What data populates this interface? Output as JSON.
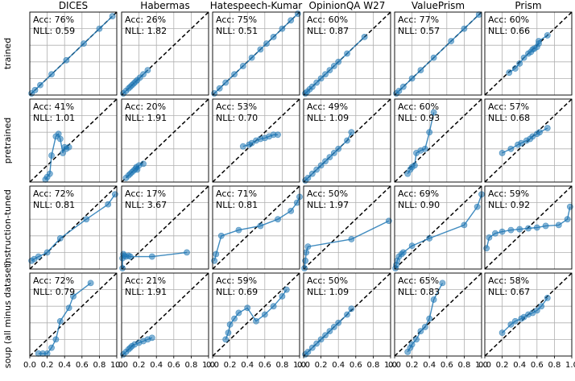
{
  "chart_data": {
    "type": "line",
    "layout": "grid-4x6",
    "xlim": [
      0,
      1
    ],
    "ylim": [
      0,
      1
    ],
    "grid": true,
    "x_ticks": [
      "0.0",
      "0.2",
      "0.4",
      "0.6",
      "0.8",
      "1.0"
    ],
    "columns": [
      "DICES",
      "Habermas",
      "Hatespeech-Kumar",
      "OpinionQA W27",
      "ValuePrism",
      "Prism"
    ],
    "rows": [
      "trained",
      "pretrained",
      "instruction-tuned",
      "soup (all minus dataset)"
    ],
    "acc_label": "Acc:",
    "nll_label": "NLL:",
    "colors": {
      "series": "#1f77b4",
      "diagonal": "#000000",
      "grid": "#b0b0b0"
    },
    "panels": [
      [
        {
          "acc": "76%",
          "nll": "0.59",
          "points": [
            [
              0.02,
              0.02
            ],
            [
              0.06,
              0.06
            ],
            [
              0.12,
              0.12
            ],
            [
              0.25,
              0.25
            ],
            [
              0.42,
              0.42
            ],
            [
              0.62,
              0.62
            ],
            [
              0.8,
              0.8
            ],
            [
              0.95,
              0.95
            ]
          ]
        },
        {
          "acc": "26%",
          "nll": "1.82",
          "points": [
            [
              0.02,
              0.02
            ],
            [
              0.05,
              0.05
            ],
            [
              0.08,
              0.08
            ],
            [
              0.1,
              0.1
            ],
            [
              0.12,
              0.12
            ],
            [
              0.14,
              0.14
            ],
            [
              0.16,
              0.16
            ],
            [
              0.18,
              0.18
            ],
            [
              0.21,
              0.21
            ],
            [
              0.25,
              0.25
            ],
            [
              0.3,
              0.3
            ]
          ]
        },
        {
          "acc": "75%",
          "nll": "0.51",
          "points": [
            [
              0.02,
              0.02
            ],
            [
              0.08,
              0.08
            ],
            [
              0.15,
              0.15
            ],
            [
              0.25,
              0.25
            ],
            [
              0.35,
              0.35
            ],
            [
              0.45,
              0.45
            ],
            [
              0.55,
              0.55
            ],
            [
              0.62,
              0.62
            ],
            [
              0.7,
              0.7
            ],
            [
              0.8,
              0.8
            ],
            [
              0.9,
              0.9
            ],
            [
              0.98,
              0.98
            ]
          ]
        },
        {
          "acc": "60%",
          "nll": "0.87",
          "points": [
            [
              0.02,
              0.02
            ],
            [
              0.04,
              0.04
            ],
            [
              0.07,
              0.07
            ],
            [
              0.1,
              0.1
            ],
            [
              0.15,
              0.15
            ],
            [
              0.2,
              0.2
            ],
            [
              0.25,
              0.25
            ],
            [
              0.3,
              0.3
            ],
            [
              0.35,
              0.35
            ],
            [
              0.4,
              0.4
            ],
            [
              0.5,
              0.5
            ],
            [
              0.7,
              0.7
            ]
          ]
        },
        {
          "acc": "77%",
          "nll": "0.57",
          "points": [
            [
              0.02,
              0.02
            ],
            [
              0.05,
              0.05
            ],
            [
              0.1,
              0.1
            ],
            [
              0.2,
              0.2
            ],
            [
              0.3,
              0.3
            ],
            [
              0.45,
              0.45
            ],
            [
              0.65,
              0.65
            ],
            [
              0.8,
              0.8
            ],
            [
              0.97,
              0.97
            ]
          ]
        },
        {
          "acc": "60%",
          "nll": "0.66",
          "points": [
            [
              0.28,
              0.27
            ],
            [
              0.35,
              0.32
            ],
            [
              0.4,
              0.38
            ],
            [
              0.45,
              0.45
            ],
            [
              0.5,
              0.5
            ],
            [
              0.53,
              0.52
            ],
            [
              0.55,
              0.55
            ],
            [
              0.57,
              0.56
            ],
            [
              0.6,
              0.58
            ],
            [
              0.62,
              0.62
            ],
            [
              0.62,
              0.65
            ],
            [
              0.72,
              0.72
            ]
          ]
        }
      ],
      [
        {
          "acc": "41%",
          "nll": "1.01",
          "points": [
            [
              0.18,
              0.03
            ],
            [
              0.2,
              0.06
            ],
            [
              0.23,
              0.1
            ],
            [
              0.25,
              0.32
            ],
            [
              0.3,
              0.55
            ],
            [
              0.33,
              0.58
            ],
            [
              0.35,
              0.52
            ],
            [
              0.38,
              0.35
            ],
            [
              0.4,
              0.42
            ],
            [
              0.42,
              0.4
            ],
            [
              0.45,
              0.42
            ]
          ]
        },
        {
          "acc": "20%",
          "nll": "1.91",
          "points": [
            [
              0.05,
              0.05
            ],
            [
              0.08,
              0.08
            ],
            [
              0.1,
              0.1
            ],
            [
              0.12,
              0.12
            ],
            [
              0.14,
              0.14
            ],
            [
              0.16,
              0.16
            ],
            [
              0.17,
              0.18
            ],
            [
              0.18,
              0.15
            ],
            [
              0.2,
              0.2
            ],
            [
              0.25,
              0.22
            ]
          ]
        },
        {
          "acc": "53%",
          "nll": "0.70",
          "points": [
            [
              0.35,
              0.43
            ],
            [
              0.42,
              0.45
            ],
            [
              0.45,
              0.47
            ],
            [
              0.5,
              0.5
            ],
            [
              0.55,
              0.52
            ],
            [
              0.6,
              0.53
            ],
            [
              0.65,
              0.55
            ],
            [
              0.7,
              0.57
            ],
            [
              0.75,
              0.57
            ]
          ]
        },
        {
          "acc": "49%",
          "nll": "1.09",
          "points": [
            [
              0.02,
              0.02
            ],
            [
              0.05,
              0.05
            ],
            [
              0.1,
              0.1
            ],
            [
              0.15,
              0.15
            ],
            [
              0.2,
              0.2
            ],
            [
              0.25,
              0.25
            ],
            [
              0.3,
              0.3
            ],
            [
              0.35,
              0.35
            ],
            [
              0.4,
              0.4
            ],
            [
              0.5,
              0.5
            ],
            [
              0.55,
              0.6
            ]
          ]
        },
        {
          "acc": "60%",
          "nll": "0.93",
          "points": [
            [
              0.15,
              0.1
            ],
            [
              0.18,
              0.15
            ],
            [
              0.2,
              0.18
            ],
            [
              0.23,
              0.2
            ],
            [
              0.25,
              0.35
            ],
            [
              0.3,
              0.38
            ],
            [
              0.35,
              0.4
            ],
            [
              0.4,
              0.6
            ],
            [
              0.45,
              0.84
            ]
          ]
        },
        {
          "acc": "57%",
          "nll": "0.68",
          "points": [
            [
              0.2,
              0.35
            ],
            [
              0.3,
              0.4
            ],
            [
              0.38,
              0.45
            ],
            [
              0.42,
              0.47
            ],
            [
              0.48,
              0.5
            ],
            [
              0.52,
              0.52
            ],
            [
              0.55,
              0.55
            ],
            [
              0.6,
              0.58
            ],
            [
              0.63,
              0.6
            ],
            [
              0.72,
              0.65
            ]
          ]
        }
      ],
      [
        {
          "acc": "72%",
          "nll": "0.81",
          "points": [
            [
              0.02,
              0.1
            ],
            [
              0.05,
              0.12
            ],
            [
              0.1,
              0.15
            ],
            [
              0.2,
              0.2
            ],
            [
              0.35,
              0.37
            ],
            [
              0.65,
              0.6
            ],
            [
              0.9,
              0.78
            ],
            [
              0.98,
              0.9
            ]
          ]
        },
        {
          "acc": "17%",
          "nll": "3.67",
          "points": [
            [
              0.01,
              0.01
            ],
            [
              0.01,
              0.13
            ],
            [
              0.02,
              0.18
            ],
            [
              0.03,
              0.16
            ],
            [
              0.05,
              0.15
            ],
            [
              0.08,
              0.16
            ],
            [
              0.1,
              0.15
            ],
            [
              0.35,
              0.15
            ],
            [
              0.75,
              0.2
            ]
          ]
        },
        {
          "acc": "71%",
          "nll": "0.81",
          "points": [
            [
              0.02,
              0.1
            ],
            [
              0.04,
              0.18
            ],
            [
              0.1,
              0.4
            ],
            [
              0.3,
              0.47
            ],
            [
              0.55,
              0.52
            ],
            [
              0.75,
              0.6
            ],
            [
              0.9,
              0.7
            ],
            [
              0.97,
              0.8
            ],
            [
              1.0,
              0.87
            ]
          ]
        },
        {
          "acc": "50%",
          "nll": "1.97",
          "points": [
            [
              0.01,
              0.01
            ],
            [
              0.02,
              0.1
            ],
            [
              0.03,
              0.2
            ],
            [
              0.05,
              0.27
            ],
            [
              0.55,
              0.36
            ],
            [
              0.98,
              0.58
            ]
          ]
        },
        {
          "acc": "69%",
          "nll": "0.90",
          "points": [
            [
              0.01,
              0.01
            ],
            [
              0.02,
              0.05
            ],
            [
              0.03,
              0.1
            ],
            [
              0.05,
              0.15
            ],
            [
              0.08,
              0.18
            ],
            [
              0.1,
              0.2
            ],
            [
              0.2,
              0.28
            ],
            [
              0.4,
              0.37
            ],
            [
              0.8,
              0.53
            ],
            [
              0.95,
              0.75
            ],
            [
              1.0,
              0.9
            ]
          ]
        },
        {
          "acc": "59%",
          "nll": "0.92",
          "points": [
            [
              0.02,
              0.25
            ],
            [
              0.05,
              0.38
            ],
            [
              0.12,
              0.43
            ],
            [
              0.2,
              0.45
            ],
            [
              0.3,
              0.47
            ],
            [
              0.4,
              0.48
            ],
            [
              0.5,
              0.49
            ],
            [
              0.6,
              0.5
            ],
            [
              0.7,
              0.52
            ],
            [
              0.85,
              0.53
            ],
            [
              0.95,
              0.6
            ],
            [
              0.98,
              0.75
            ]
          ]
        }
      ],
      [
        {
          "acc": "72%",
          "nll": "0.79",
          "points": [
            [
              0.1,
              0.03
            ],
            [
              0.15,
              0.03
            ],
            [
              0.2,
              0.03
            ],
            [
              0.25,
              0.1
            ],
            [
              0.3,
              0.2
            ],
            [
              0.35,
              0.42
            ],
            [
              0.45,
              0.58
            ],
            [
              0.5,
              0.72
            ],
            [
              0.7,
              0.88
            ]
          ]
        },
        {
          "acc": "21%",
          "nll": "1.91",
          "points": [
            [
              0.02,
              0.02
            ],
            [
              0.05,
              0.05
            ],
            [
              0.08,
              0.08
            ],
            [
              0.1,
              0.1
            ],
            [
              0.12,
              0.12
            ],
            [
              0.15,
              0.14
            ],
            [
              0.2,
              0.16
            ],
            [
              0.25,
              0.18
            ],
            [
              0.3,
              0.2
            ],
            [
              0.35,
              0.22
            ]
          ]
        },
        {
          "acc": "59%",
          "nll": "0.69",
          "points": [
            [
              0.15,
              0.2
            ],
            [
              0.18,
              0.28
            ],
            [
              0.2,
              0.38
            ],
            [
              0.25,
              0.45
            ],
            [
              0.3,
              0.52
            ],
            [
              0.4,
              0.58
            ],
            [
              0.5,
              0.42
            ],
            [
              0.6,
              0.5
            ],
            [
              0.7,
              0.6
            ],
            [
              0.8,
              0.72
            ],
            [
              0.85,
              0.8
            ]
          ]
        },
        {
          "acc": "50%",
          "nll": "1.09",
          "points": [
            [
              0.02,
              0.02
            ],
            [
              0.05,
              0.05
            ],
            [
              0.1,
              0.1
            ],
            [
              0.15,
              0.15
            ],
            [
              0.2,
              0.2
            ],
            [
              0.25,
              0.25
            ],
            [
              0.3,
              0.3
            ],
            [
              0.35,
              0.35
            ],
            [
              0.4,
              0.4
            ],
            [
              0.5,
              0.5
            ],
            [
              0.55,
              0.57
            ]
          ]
        },
        {
          "acc": "65%",
          "nll": "0.83",
          "points": [
            [
              0.15,
              0.05
            ],
            [
              0.18,
              0.1
            ],
            [
              0.2,
              0.14
            ],
            [
              0.25,
              0.2
            ],
            [
              0.3,
              0.3
            ],
            [
              0.35,
              0.35
            ],
            [
              0.4,
              0.45
            ],
            [
              0.45,
              0.68
            ],
            [
              0.55,
              0.88
            ]
          ]
        },
        {
          "acc": "58%",
          "nll": "0.67",
          "points": [
            [
              0.2,
              0.28
            ],
            [
              0.3,
              0.38
            ],
            [
              0.35,
              0.42
            ],
            [
              0.42,
              0.45
            ],
            [
              0.45,
              0.47
            ],
            [
              0.5,
              0.5
            ],
            [
              0.55,
              0.52
            ],
            [
              0.6,
              0.55
            ],
            [
              0.65,
              0.6
            ],
            [
              0.72,
              0.7
            ]
          ]
        }
      ]
    ]
  }
}
